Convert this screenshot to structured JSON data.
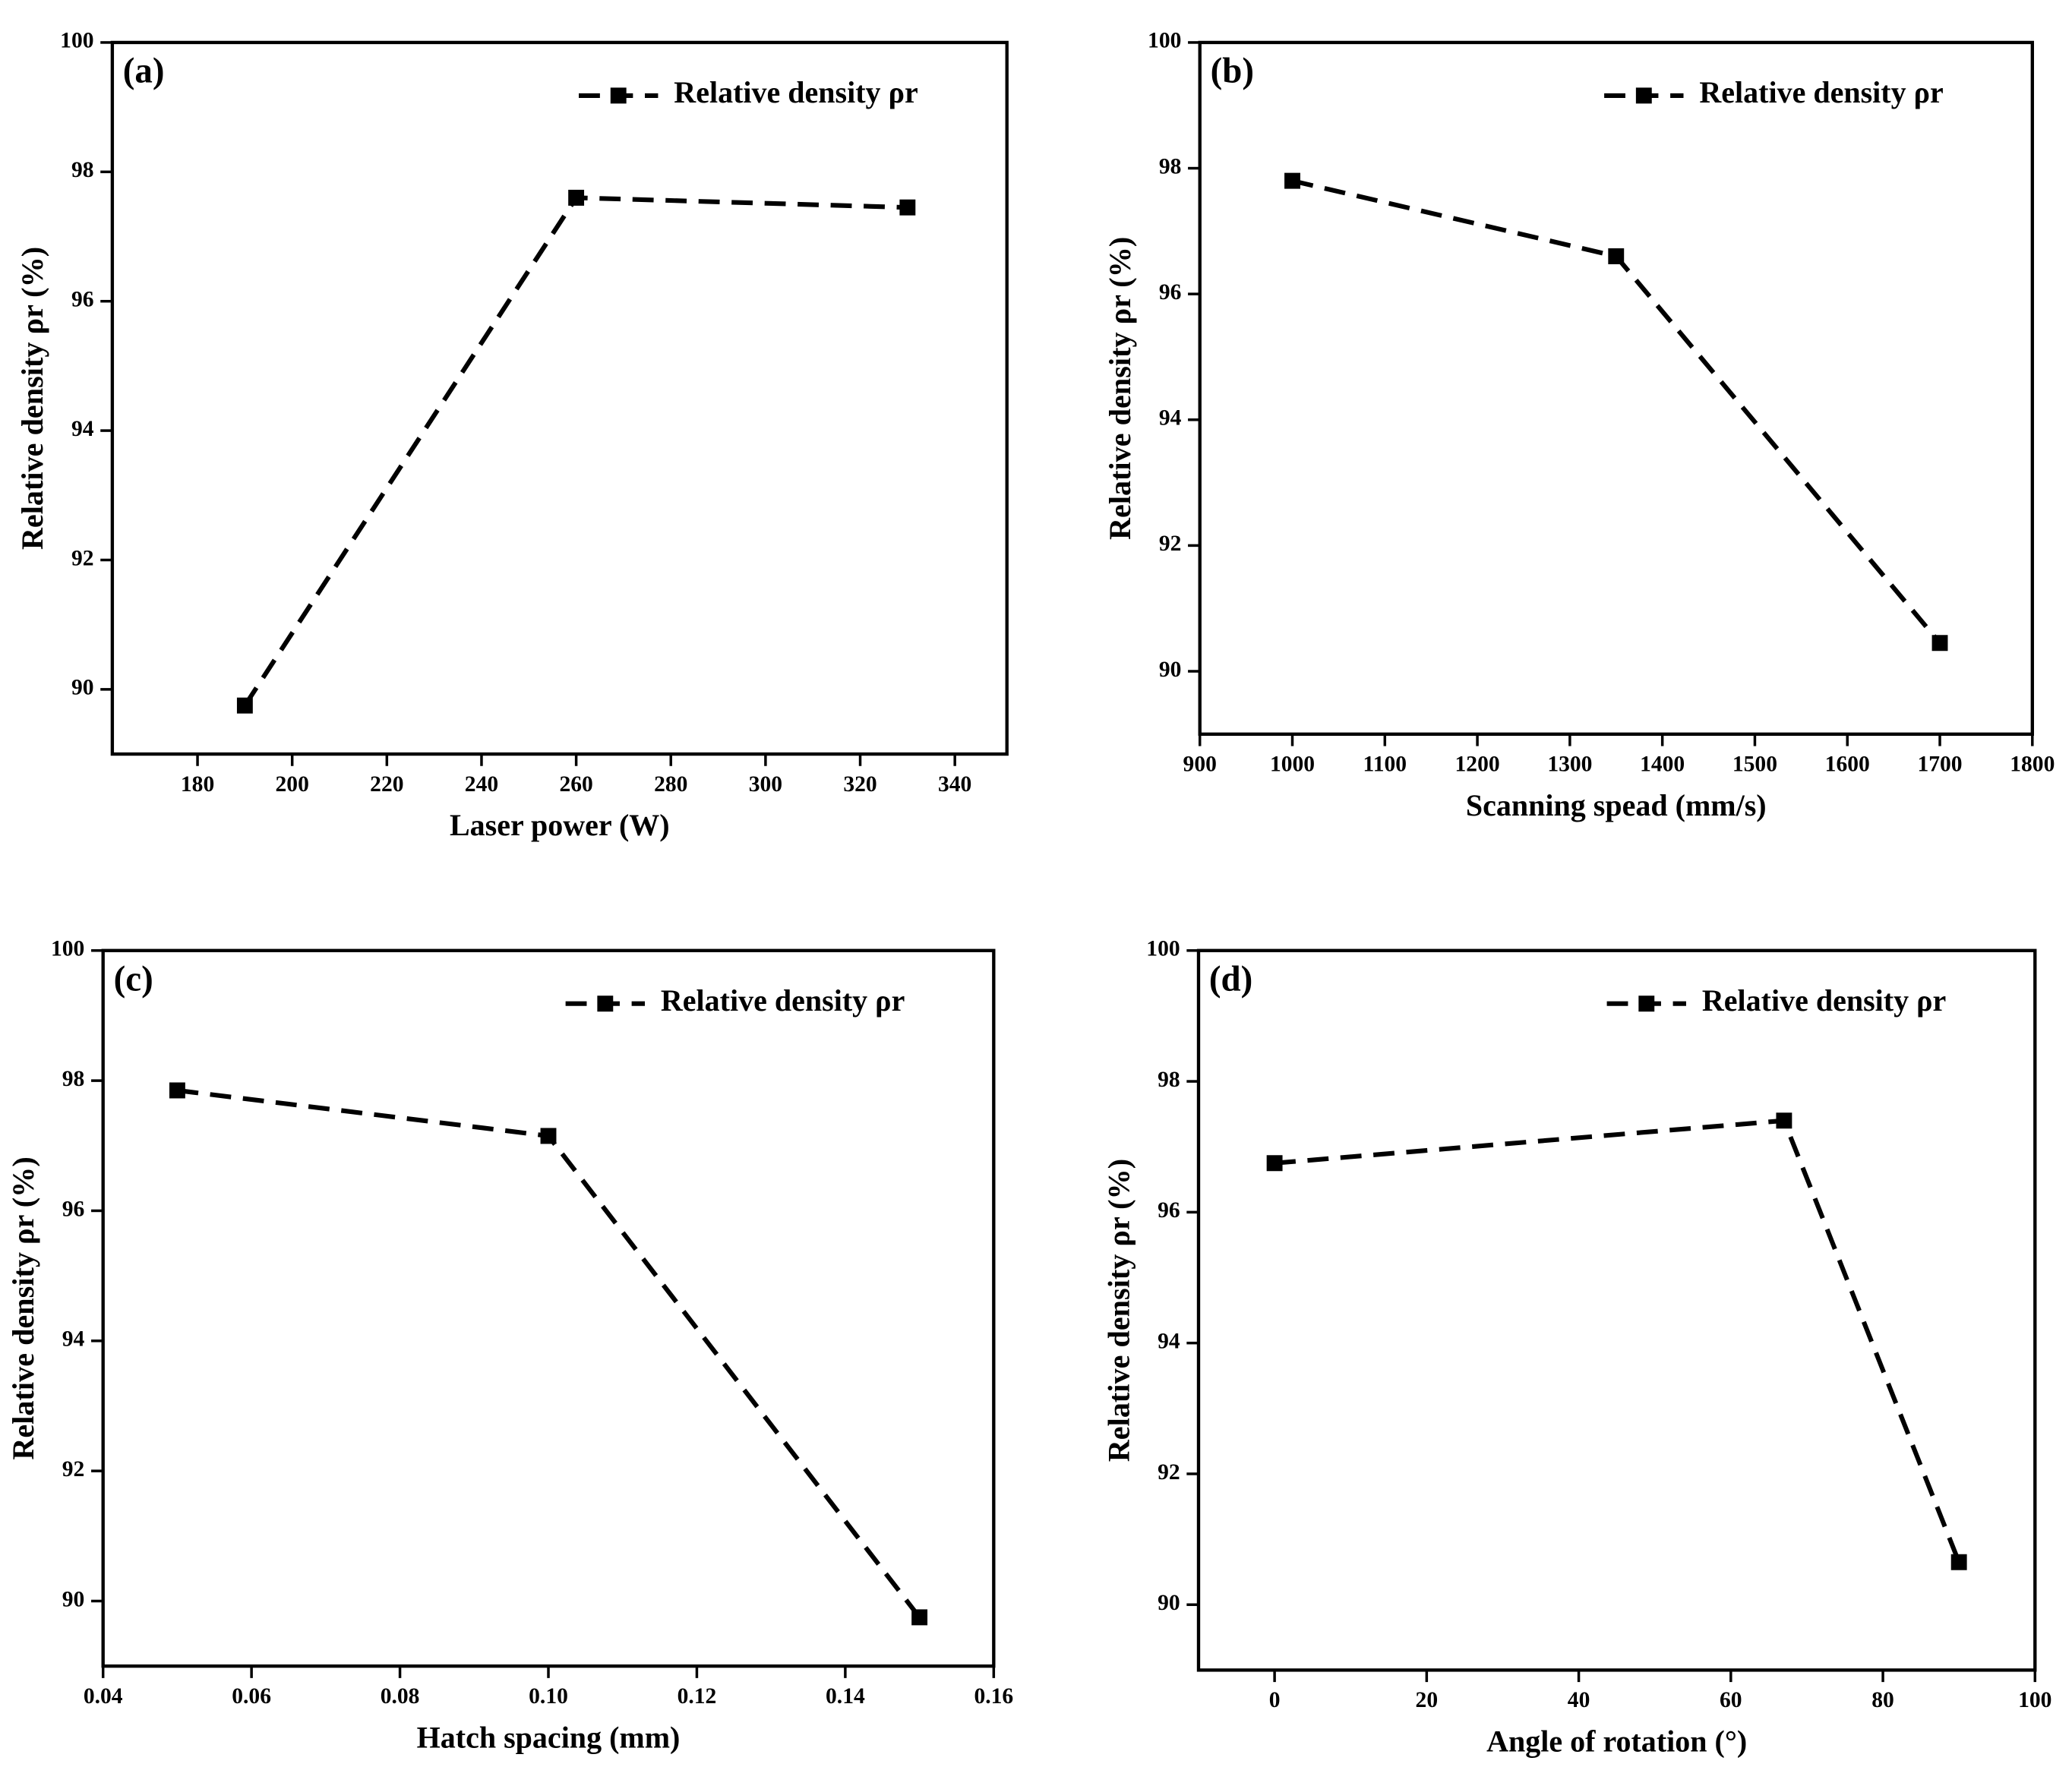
{
  "chart_data": [
    {
      "type": "line",
      "panel_label": "(a)",
      "x": [
        190,
        260,
        330
      ],
      "series": [
        {
          "name": "Relative density ρr",
          "color": "#000000",
          "values": [
            89.75,
            97.6,
            97.45
          ]
        }
      ],
      "xlabel": "Laser power (W)",
      "ylabel": "Relative density ρr (%)",
      "xlim": [
        162,
        351
      ],
      "ylim": [
        89,
        100
      ],
      "xticks": [
        180,
        200,
        220,
        240,
        260,
        280,
        300,
        320,
        340
      ],
      "yticks": [
        90,
        92,
        94,
        96,
        98,
        100
      ],
      "legend": "upper right",
      "line_style": "dashed",
      "marker": "square"
    },
    {
      "type": "line",
      "panel_label": "(b)",
      "x": [
        1000,
        1350,
        1700
      ],
      "series": [
        {
          "name": "Relative density ρr",
          "color": "#000000",
          "values": [
            97.8,
            96.6,
            90.45
          ]
        }
      ],
      "xlabel": "Scanning spead (mm/s)",
      "ylabel": "Relative density ρr (%)",
      "xlim": [
        900,
        1800
      ],
      "ylim": [
        89,
        100
      ],
      "xticks": [
        900,
        1000,
        1100,
        1200,
        1300,
        1400,
        1500,
        1600,
        1700,
        1800
      ],
      "yticks": [
        90,
        92,
        94,
        96,
        98,
        100
      ],
      "legend": "upper right",
      "line_style": "dashed",
      "marker": "square"
    },
    {
      "type": "line",
      "panel_label": "(c)",
      "x": [
        0.05,
        0.1,
        0.15
      ],
      "series": [
        {
          "name": "Relative density ρr",
          "color": "#000000",
          "values": [
            97.85,
            97.15,
            89.75
          ]
        }
      ],
      "xlabel": "Hatch spacing (mm)",
      "ylabel": "Relative density ρr (%)",
      "xlim": [
        0.04,
        0.16
      ],
      "ylim": [
        89,
        100
      ],
      "xticks": [
        {
          "value": 0.04,
          "label": "0.04"
        },
        {
          "value": 0.06,
          "label": "0.06"
        },
        {
          "value": 0.08,
          "label": "0.08"
        },
        {
          "value": 0.1,
          "label": "0.10"
        },
        {
          "value": 0.12,
          "label": "0.12"
        },
        {
          "value": 0.14,
          "label": "0.14"
        },
        {
          "value": 0.16,
          "label": "0.16"
        }
      ],
      "yticks": [
        90,
        92,
        94,
        96,
        98,
        100
      ],
      "legend": "upper right",
      "line_style": "dashed",
      "marker": "square"
    },
    {
      "type": "line",
      "panel_label": "(d)",
      "x": [
        0,
        67,
        90
      ],
      "series": [
        {
          "name": "Relative density ρr",
          "color": "#000000",
          "values": [
            96.75,
            97.4,
            90.65
          ]
        }
      ],
      "xlabel": "Angle of rotation (°)",
      "ylabel": "Relative density ρr (%)",
      "xlim": [
        -10,
        100
      ],
      "ylim": [
        89,
        100
      ],
      "xticks": [
        0,
        20,
        40,
        60,
        80,
        100
      ],
      "yticks": [
        90,
        92,
        94,
        96,
        98,
        100
      ],
      "legend": "upper right",
      "line_style": "dashed",
      "marker": "square"
    }
  ]
}
